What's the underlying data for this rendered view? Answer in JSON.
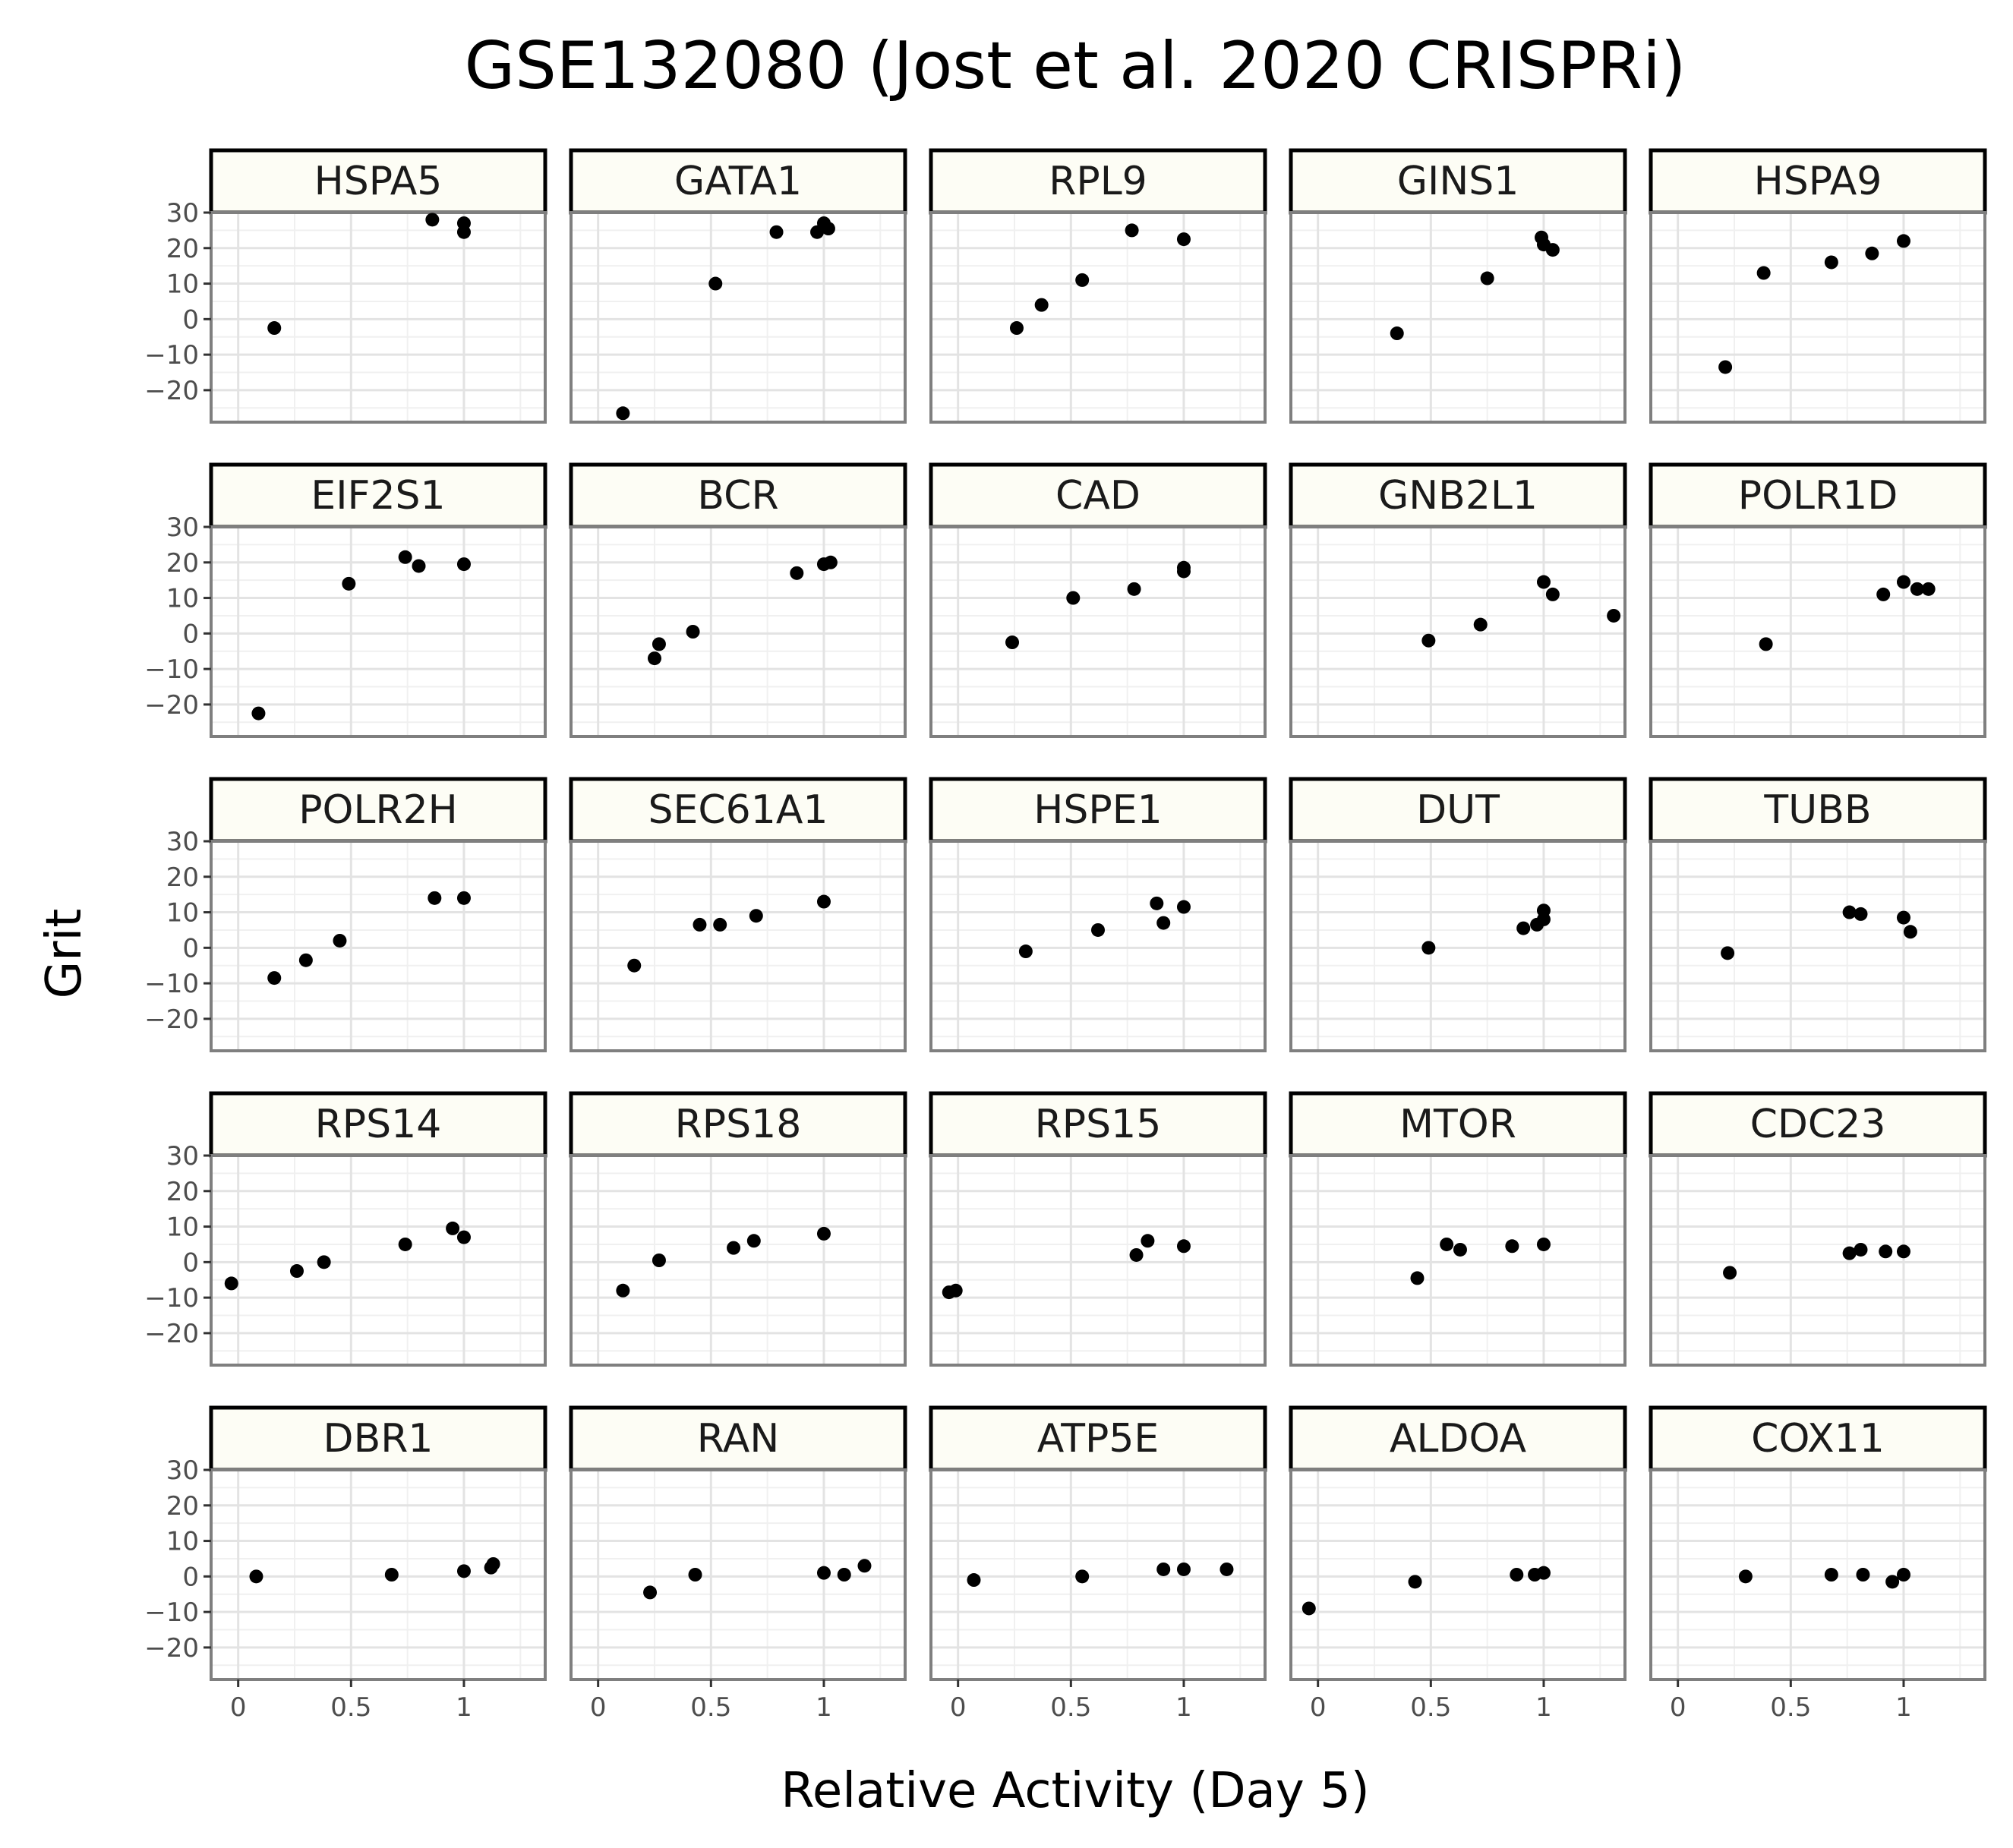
{
  "chart_data": {
    "type": "scatter",
    "title": "GSE132080 (Jost et al. 2020 CRISPRi)",
    "xlabel": "Relative Activity (Day 5)",
    "ylabel": "Grit",
    "xlim": [
      -0.12,
      1.36
    ],
    "ylim": [
      -29,
      30
    ],
    "x_ticks": [
      0,
      0.5,
      1
    ],
    "x_tick_labels": [
      "0",
      "0.5",
      "1"
    ],
    "y_ticks": [
      -20,
      -10,
      0,
      10,
      20,
      30
    ],
    "y_tick_labels": [
      "−20",
      "−10",
      "0",
      "10",
      "20",
      "30"
    ],
    "grid": true,
    "layout": "facet grid 5 x 5",
    "panels": [
      {
        "name": "HSPA5",
        "x": [
          0.16,
          0.86,
          1.0,
          1.0
        ],
        "y": [
          -2.5,
          28,
          27,
          24.5
        ]
      },
      {
        "name": "GATA1",
        "x": [
          0.11,
          0.52,
          0.79,
          0.97,
          1.0,
          1.02
        ],
        "y": [
          -26.5,
          10,
          24.5,
          24.5,
          27,
          25.5
        ]
      },
      {
        "name": "RPL9",
        "x": [
          0.26,
          0.37,
          0.55,
          0.77,
          1.0
        ],
        "y": [
          -2.5,
          4,
          11,
          25,
          22.5
        ]
      },
      {
        "name": "GINS1",
        "x": [
          0.35,
          0.75,
          0.99,
          1.0,
          1.04
        ],
        "y": [
          -4,
          11.5,
          23,
          21,
          19.5
        ]
      },
      {
        "name": "HSPA9",
        "x": [
          0.21,
          0.38,
          0.68,
          0.86,
          1.0
        ],
        "y": [
          -13.5,
          13,
          16,
          18.5,
          22
        ]
      },
      {
        "name": "EIF2S1",
        "x": [
          0.09,
          0.49,
          0.74,
          0.8,
          1.0
        ],
        "y": [
          -22.5,
          14,
          21.5,
          19,
          19.5
        ]
      },
      {
        "name": "BCR",
        "x": [
          0.25,
          0.27,
          0.42,
          0.88,
          1.0,
          1.03
        ],
        "y": [
          -7,
          -3,
          0.5,
          17,
          19.5,
          20
        ]
      },
      {
        "name": "CAD",
        "x": [
          0.24,
          0.51,
          0.78,
          1.0,
          1.0
        ],
        "y": [
          -2.5,
          10,
          12.5,
          18.5,
          17.5
        ]
      },
      {
        "name": "GNB2L1",
        "x": [
          0.49,
          0.72,
          1.0,
          1.04,
          1.31
        ],
        "y": [
          -2,
          2.5,
          14.5,
          11,
          5
        ]
      },
      {
        "name": "POLR1D",
        "x": [
          0.39,
          0.91,
          1.0,
          1.06,
          1.11
        ],
        "y": [
          -3,
          11,
          14.5,
          12.5,
          12.5
        ]
      },
      {
        "name": "POLR2H",
        "x": [
          0.16,
          0.3,
          0.45,
          0.87,
          1.0
        ],
        "y": [
          -8.5,
          -3.5,
          2,
          14,
          14
        ]
      },
      {
        "name": "SEC61A1",
        "x": [
          0.16,
          0.45,
          0.54,
          0.7,
          1.0
        ],
        "y": [
          -5,
          6.5,
          6.5,
          9,
          13
        ]
      },
      {
        "name": "HSPE1",
        "x": [
          0.3,
          0.62,
          0.88,
          0.91,
          1.0
        ],
        "y": [
          -1,
          5,
          12.5,
          7,
          11.5
        ]
      },
      {
        "name": "DUT",
        "x": [
          0.49,
          0.91,
          0.97,
          1.0,
          1.0
        ],
        "y": [
          0,
          5.5,
          6.5,
          8,
          10.5
        ]
      },
      {
        "name": "TUBB",
        "x": [
          0.22,
          0.76,
          0.81,
          1.0,
          1.03
        ],
        "y": [
          -1.5,
          10,
          9.5,
          8.5,
          4.5
        ]
      },
      {
        "name": "RPS14",
        "x": [
          -0.03,
          0.26,
          0.38,
          0.74,
          0.95,
          1.0
        ],
        "y": [
          -6,
          -2.5,
          0,
          5,
          9.5,
          7
        ]
      },
      {
        "name": "RPS18",
        "x": [
          0.11,
          0.27,
          0.6,
          0.69,
          1.0
        ],
        "y": [
          -8,
          0.5,
          4,
          6,
          8
        ]
      },
      {
        "name": "RPS15",
        "x": [
          -0.04,
          -0.01,
          0.79,
          0.84,
          1.0
        ],
        "y": [
          -8.5,
          -8,
          2,
          6,
          4.5
        ]
      },
      {
        "name": "MTOR",
        "x": [
          0.44,
          0.57,
          0.63,
          0.86,
          1.0
        ],
        "y": [
          -4.5,
          5,
          3.5,
          4.5,
          5
        ]
      },
      {
        "name": "CDC23",
        "x": [
          0.23,
          0.76,
          0.81,
          0.92,
          1.0
        ],
        "y": [
          -3,
          2.5,
          3.5,
          3,
          3
        ]
      },
      {
        "name": "DBR1",
        "x": [
          0.08,
          0.68,
          1.0,
          1.12,
          1.13
        ],
        "y": [
          0,
          0.5,
          1.5,
          2.5,
          3.5
        ]
      },
      {
        "name": "RAN",
        "x": [
          0.23,
          0.43,
          1.0,
          1.09,
          1.18
        ],
        "y": [
          -4.5,
          0.5,
          1,
          0.5,
          3
        ]
      },
      {
        "name": "ATP5E",
        "x": [
          0.07,
          0.55,
          0.91,
          1.0,
          1.19
        ],
        "y": [
          -1,
          0,
          2,
          2,
          2
        ]
      },
      {
        "name": "ALDOA",
        "x": [
          -0.04,
          0.43,
          0.88,
          0.96,
          1.0
        ],
        "y": [
          -9,
          -1.5,
          0.5,
          0.5,
          1
        ]
      },
      {
        "name": "COX11",
        "x": [
          0.3,
          0.68,
          0.82,
          0.95,
          1.0
        ],
        "y": [
          0,
          0.5,
          0.5,
          -1.5,
          0.5
        ]
      }
    ]
  }
}
